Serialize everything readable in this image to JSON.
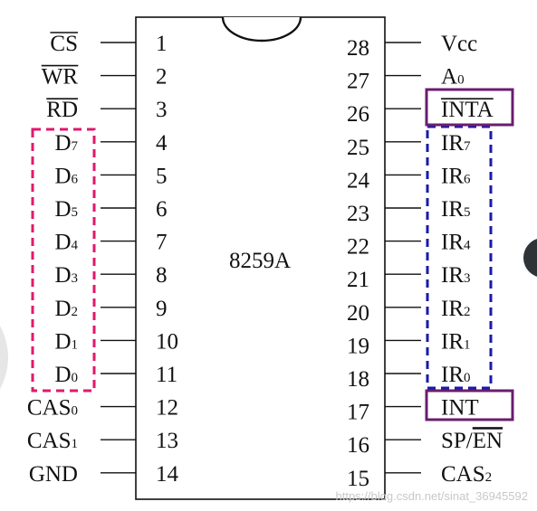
{
  "chip": {
    "name": "8259A"
  },
  "left_pins": [
    {
      "num": "1",
      "label": "CS",
      "sub": "",
      "overline": true
    },
    {
      "num": "2",
      "label": "WR",
      "sub": "",
      "overline": true
    },
    {
      "num": "3",
      "label": "RD",
      "sub": "",
      "overline": true
    },
    {
      "num": "4",
      "label": "D",
      "sub": "7",
      "overline": false
    },
    {
      "num": "5",
      "label": "D",
      "sub": "6",
      "overline": false
    },
    {
      "num": "6",
      "label": "D",
      "sub": "5",
      "overline": false
    },
    {
      "num": "7",
      "label": "D",
      "sub": "4",
      "overline": false
    },
    {
      "num": "8",
      "label": "D",
      "sub": "3",
      "overline": false
    },
    {
      "num": "9",
      "label": "D",
      "sub": "2",
      "overline": false
    },
    {
      "num": "10",
      "label": "D",
      "sub": "1",
      "overline": false
    },
    {
      "num": "11",
      "label": "D",
      "sub": "0",
      "overline": false
    },
    {
      "num": "12",
      "label": "CAS",
      "sub": "0",
      "overline": false
    },
    {
      "num": "13",
      "label": "CAS",
      "sub": "1",
      "overline": false
    },
    {
      "num": "14",
      "label": "GND",
      "sub": "",
      "overline": false
    }
  ],
  "right_pins": [
    {
      "num": "28",
      "label": "Vcc",
      "sub": "",
      "overline": false
    },
    {
      "num": "27",
      "label": "A",
      "sub": "0",
      "overline": false
    },
    {
      "num": "26",
      "label": "INTA",
      "sub": "",
      "overline": true
    },
    {
      "num": "25",
      "label": "IR",
      "sub": "7",
      "overline": false
    },
    {
      "num": "24",
      "label": "IR",
      "sub": "6",
      "overline": false
    },
    {
      "num": "23",
      "label": "IR",
      "sub": "5",
      "overline": false
    },
    {
      "num": "22",
      "label": "IR",
      "sub": "4",
      "overline": false
    },
    {
      "num": "21",
      "label": "IR",
      "sub": "3",
      "overline": false
    },
    {
      "num": "20",
      "label": "IR",
      "sub": "2",
      "overline": false
    },
    {
      "num": "19",
      "label": "IR",
      "sub": "1",
      "overline": false
    },
    {
      "num": "18",
      "label": "IR",
      "sub": "0",
      "overline": false
    },
    {
      "num": "17",
      "label": "INT",
      "sub": "",
      "overline": false
    },
    {
      "num": "16",
      "label": "SP/EN",
      "sub": "",
      "overline": false,
      "overline_part": "EN"
    },
    {
      "num": "15",
      "label": "CAS",
      "sub": "2",
      "overline": false
    }
  ],
  "watermark": "https://blog.csdn.net/sinat_36945592",
  "colors": {
    "data_bus_box": "#e0186c",
    "ir_box": "#1a1aa8",
    "highlight_box": "#6a1d6e",
    "line": "#111111"
  }
}
